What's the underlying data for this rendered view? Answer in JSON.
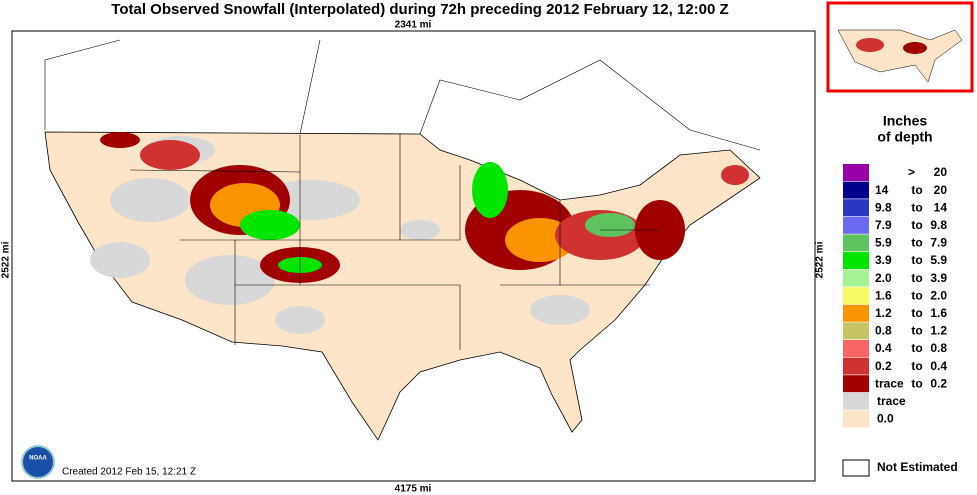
{
  "title": "Total Observed Snowfall (Interpolated) during 72h preceding 2012 February 12, 12:00 Z",
  "scale": {
    "top": "2341 mi",
    "bottom": "4175 mi",
    "left": "2522 mi",
    "right": "2522 mi"
  },
  "created": "Created 2012 Feb 15, 12:21 Z",
  "logo": "NOAA",
  "legend": {
    "title": [
      "Inches",
      "of depth"
    ],
    "items": [
      {
        "color": "#9a00a8",
        "text": [
          ">",
          "20"
        ]
      },
      {
        "color": "#00008c",
        "text": [
          "14",
          "to",
          "20"
        ]
      },
      {
        "color": "#2838c0",
        "text": [
          "9.8",
          "to",
          "14"
        ]
      },
      {
        "color": "#6a6af2",
        "text": [
          "7.9",
          "to",
          "9.8"
        ]
      },
      {
        "color": "#5ec25e",
        "text": [
          "5.9",
          "to",
          "7.9"
        ]
      },
      {
        "color": "#00e600",
        "text": [
          "3.9",
          "to",
          "5.9"
        ]
      },
      {
        "color": "#a4f496",
        "text": [
          "2.0",
          "to",
          "3.9"
        ]
      },
      {
        "color": "#fafa64",
        "text": [
          "1.6",
          "to",
          "2.0"
        ]
      },
      {
        "color": "#fa9400",
        "text": [
          "1.2",
          "to",
          "1.6"
        ]
      },
      {
        "color": "#c8c464",
        "text": [
          "0.8",
          "to",
          "1.2"
        ]
      },
      {
        "color": "#fa6464",
        "text": [
          "0.4",
          "to",
          "0.8"
        ]
      },
      {
        "color": "#d03232",
        "text": [
          "0.2",
          "to",
          "0.4"
        ]
      },
      {
        "color": "#a00000",
        "text": [
          "trace",
          "to",
          "0.2"
        ]
      },
      {
        "color": "#d8d8d8",
        "text": [
          "trace"
        ]
      },
      {
        "color": "#fce4c8",
        "text": [
          "0.0"
        ]
      }
    ],
    "not_estimated": "Not Estimated"
  }
}
